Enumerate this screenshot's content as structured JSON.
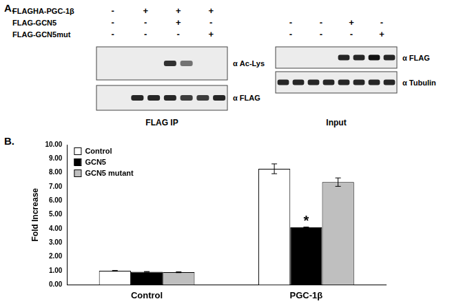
{
  "figure": {
    "panel_a": {
      "label": "A.",
      "row_labels": [
        "FLAGHA-PGC-1β",
        "FLAG-GCN5",
        "FLAG-GCN5mut"
      ],
      "groups": [
        {
          "name": "FLAG IP",
          "signs": [
            [
              "-",
              "+",
              "+",
              "+"
            ],
            [
              "-",
              "-",
              "+",
              "-"
            ],
            [
              "-",
              "-",
              "-",
              "+"
            ]
          ],
          "blots": [
            {
              "label": "α Ac-Lys",
              "bands": [
                0,
                0,
                0,
                0,
                0.85,
                0.55,
                0,
                0
              ]
            },
            {
              "label": "α FLAG",
              "bands": [
                0,
                0,
                0.9,
                0.9,
                0.9,
                0.8,
                0.8,
                0.9
              ]
            }
          ]
        },
        {
          "name": "Input",
          "signs": [
            null,
            [
              "-",
              "-",
              "+",
              "-"
            ],
            [
              "-",
              "-",
              "-",
              "+"
            ]
          ],
          "blots": [
            {
              "label": "α FLAG",
              "bands": [
                0,
                0,
                0,
                0,
                0.9,
                0.9,
                1,
                0.9
              ]
            },
            {
              "label": "α Tubulin",
              "bands": [
                0.9,
                0.9,
                0.9,
                0.9,
                0.9,
                0.9,
                0.9,
                0.9
              ]
            }
          ]
        }
      ]
    },
    "panel_b_label": "B."
  },
  "chart_data": {
    "type": "bar",
    "categories": [
      "Control",
      "PGC-1β"
    ],
    "series": [
      {
        "name": "Control",
        "color": "#ffffff",
        "values": [
          1.0,
          8.28
        ],
        "errors": [
          0.03,
          0.35
        ]
      },
      {
        "name": "GCN5",
        "color": "#000000",
        "values": [
          0.93,
          4.1
        ],
        "errors": [
          0.02,
          0.03
        ]
      },
      {
        "name": "GCN5 mutant",
        "color": "#bfbfbf",
        "values": [
          0.9,
          7.33
        ],
        "errors": [
          0.03,
          0.3
        ]
      }
    ],
    "y_label": "Fold Increase",
    "ylim": [
      0,
      10
    ],
    "yticks": [
      {
        "value": 0,
        "label": "0.00"
      },
      {
        "value": 1,
        "label": "1.00"
      },
      {
        "value": 2,
        "label": "2.00"
      },
      {
        "value": 3,
        "label": "3.00"
      },
      {
        "value": 4,
        "label": "4.00"
      },
      {
        "value": 5,
        "label": "5.00"
      },
      {
        "value": 6,
        "label": "6.00"
      },
      {
        "value": 7,
        "label": "7.00"
      },
      {
        "value": 8,
        "label": "8.00"
      },
      {
        "value": 9,
        "label": "9.00"
      },
      {
        "value": 10,
        "label": "10.00"
      }
    ],
    "annotations": [
      {
        "text": "*",
        "series": "GCN5",
        "category": "PGC-1β"
      }
    ],
    "legend": "upper left",
    "grid": false
  }
}
